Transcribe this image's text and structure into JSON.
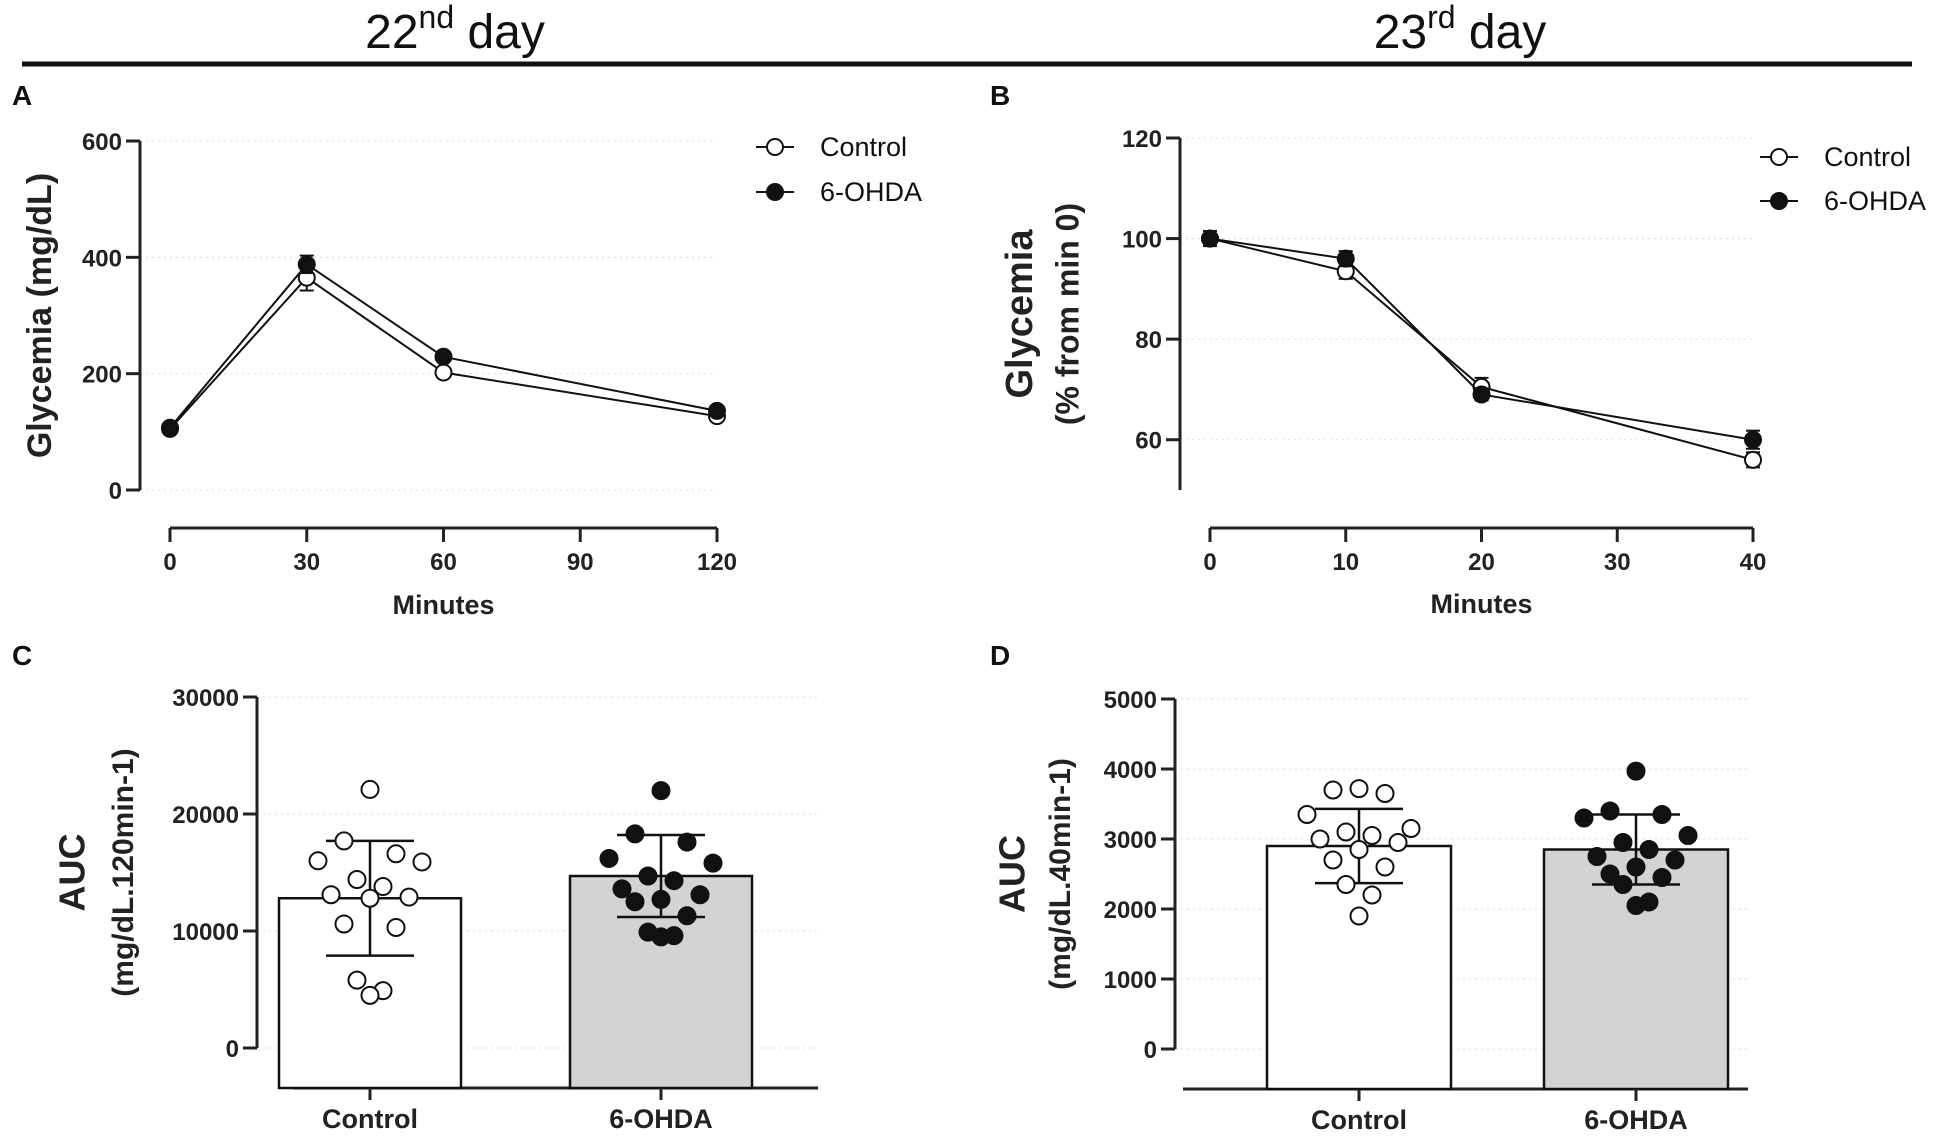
{
  "headings": {
    "left": {
      "number": "22",
      "suffix": "nd",
      "rest": " day"
    },
    "right": {
      "number": "23",
      "suffix": "rd",
      "rest": " day"
    }
  },
  "colors": {
    "control_fill": "#ffffff",
    "ohda_fill": "#111111",
    "control_bar": "#ffffff",
    "ohda_bar": "#d3d3d3",
    "axis": "#222222",
    "grid": "#dddddd"
  },
  "chart_data": [
    {
      "id": "A",
      "letter": "A",
      "type": "line",
      "title": "",
      "xlabel": "Minutes",
      "ylabel": "Glycemia (mg/dL)",
      "xlim": [
        0,
        120
      ],
      "ylim": [
        0,
        600
      ],
      "xticks": [
        0,
        30,
        60,
        90,
        120
      ],
      "yticks": [
        0,
        200,
        400,
        600
      ],
      "grid": true,
      "legend_position": "top-right",
      "series": [
        {
          "name": "Control",
          "marker": "open",
          "x": [
            0,
            30,
            60,
            120
          ],
          "values": [
            105,
            365,
            202,
            127
          ],
          "err": [
            5,
            22,
            8,
            6
          ]
        },
        {
          "name": "6-OHDA",
          "marker": "filled",
          "x": [
            0,
            30,
            60,
            120
          ],
          "values": [
            107,
            388,
            229,
            136
          ],
          "err": [
            5,
            15,
            7,
            5
          ]
        }
      ]
    },
    {
      "id": "B",
      "letter": "B",
      "type": "line",
      "title": "",
      "xlabel": "Minutes",
      "ylabel": "Glycemia",
      "ylabel2": "(% from min 0)",
      "xlim": [
        0,
        40
      ],
      "ylim": [
        50,
        120
      ],
      "xticks": [
        0,
        10,
        20,
        30,
        40
      ],
      "yticks": [
        60,
        80,
        100,
        120
      ],
      "grid": true,
      "legend_position": "top-right",
      "series": [
        {
          "name": "Control",
          "marker": "open",
          "x": [
            0,
            10,
            20,
            40
          ],
          "values": [
            100,
            93.5,
            70.5,
            56
          ],
          "err": [
            1.5,
            1.5,
            1.8,
            1.5
          ]
        },
        {
          "name": "6-OHDA",
          "marker": "filled",
          "x": [
            0,
            10,
            20,
            40
          ],
          "values": [
            100,
            96,
            69,
            60
          ],
          "err": [
            1.0,
            1.5,
            1.2,
            1.8
          ]
        }
      ]
    },
    {
      "id": "C",
      "letter": "C",
      "type": "bar",
      "title": "",
      "xlabel": "",
      "ylabel": "AUC",
      "ylabel2": "(mg/dL.120min-1)",
      "ylim": [
        0,
        30000
      ],
      "yticks": [
        0,
        10000,
        20000,
        30000
      ],
      "grid": true,
      "categories": [
        "Control",
        "6-OHDA"
      ],
      "values": [
        12800,
        14700
      ],
      "err": [
        4900,
        3500
      ],
      "points": [
        [
          22100,
          17700,
          16600,
          16000,
          15900,
          14400,
          13800,
          13100,
          12900,
          12800,
          10600,
          10300,
          5800,
          4900,
          4500
        ],
        [
          22000,
          18300,
          17600,
          16200,
          15800,
          14700,
          14300,
          13600,
          13100,
          12700,
          12500,
          11300,
          9900,
          9600,
          9500
        ]
      ]
    },
    {
      "id": "D",
      "letter": "D",
      "type": "bar",
      "title": "",
      "xlabel": "",
      "ylabel": "AUC",
      "ylabel2": "(mg/dL.40min-1)",
      "ylim": [
        0,
        5000
      ],
      "yticks": [
        0,
        1000,
        2000,
        3000,
        4000,
        5000
      ],
      "grid": true,
      "categories": [
        "Control",
        "6-OHDA"
      ],
      "values": [
        2900,
        2850
      ],
      "err": [
        530,
        500
      ],
      "points": [
        [
          3720,
          3700,
          3650,
          3350,
          3150,
          3100,
          3050,
          3000,
          2950,
          2850,
          2700,
          2600,
          2350,
          2200,
          1900
        ],
        [
          3970,
          3400,
          3350,
          3300,
          3050,
          2950,
          2850,
          2750,
          2700,
          2600,
          2500,
          2450,
          2350,
          2100,
          2050
        ]
      ]
    }
  ]
}
